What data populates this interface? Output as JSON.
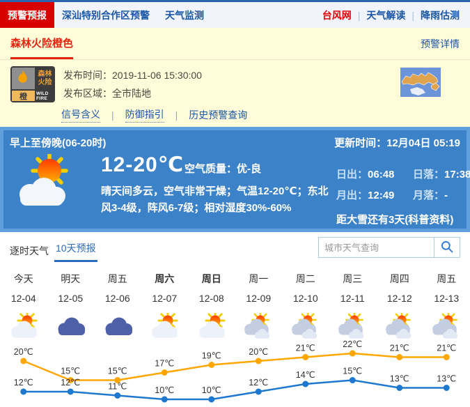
{
  "nav": {
    "separator": "|",
    "tabs": [
      {
        "label": "预警预报",
        "active": true
      },
      {
        "label": "深汕特别合作区预警",
        "active": false
      },
      {
        "label": "天气监测",
        "active": false
      }
    ],
    "links": [
      {
        "label": "台风网",
        "color": "#E60000"
      },
      {
        "label": "天气解读",
        "color": "#1A56A8"
      },
      {
        "label": "降雨估测",
        "color": "#1A56A8"
      }
    ]
  },
  "warning": {
    "tab": "森林火险橙色",
    "detail_link": "预警详情",
    "icon": {
      "name_line1": "森林",
      "name_line2": "火险",
      "level": "橙",
      "en": "WILD FIRE"
    },
    "publish_time_label": "发布时间：",
    "publish_time": "2019-11-06 15:30:00",
    "publish_area_label": "发布区域：",
    "publish_area": "全市陆地",
    "separator": "|",
    "links": [
      "信号含义",
      "防御指引",
      "历史预警查询"
    ]
  },
  "current": {
    "period": "早上至傍晚(06-20时)",
    "update_label": "更新时间：",
    "update_time": "12月04日 05:19",
    "temp_range": "12-20℃",
    "air_quality_label": "空气质量：",
    "air_quality": "优-良",
    "description": "晴天间多云，空气非常干燥；气温12-20℃；东北风3-4级，阵风6-7级；相对湿度30%-60%",
    "sunrise_label": "日出：",
    "sunrise": "06:48",
    "sunset_label": "日落：",
    "sunset": "17:38",
    "moonrise_label": "月出：",
    "moonrise": "12:49",
    "moonset_label": "月落：",
    "moonset": "-",
    "countdown": "距大雪还有3天(科普资料)"
  },
  "forecast_tabs": {
    "hourly": "逐时天气",
    "ten_day": "10天预报"
  },
  "search": {
    "placeholder": "城市天气查询"
  },
  "chart_data": {
    "type": "line",
    "title": "10天预报",
    "categories": [
      "今天",
      "明天",
      "周五",
      "周六",
      "周日",
      "周一",
      "周二",
      "周三",
      "周四",
      "周五"
    ],
    "dates": [
      "12-04",
      "12-05",
      "12-06",
      "12-07",
      "12-08",
      "12-09",
      "12-10",
      "12-11",
      "12-12",
      "12-13"
    ],
    "bold_days": [
      3,
      4
    ],
    "icons": [
      "sun-cloud",
      "cloud",
      "cloud",
      "sun-cloud",
      "sun-cloud",
      "sun-clouds",
      "sun-clouds",
      "sun-clouds",
      "sun-clouds",
      "sun-clouds"
    ],
    "unit": "℃",
    "series": [
      {
        "name": "high",
        "color": "#FFA600",
        "values": [
          20,
          15,
          15,
          17,
          19,
          20,
          21,
          22,
          21,
          21
        ]
      },
      {
        "name": "low",
        "color": "#1E78D0",
        "values": [
          12,
          12,
          11,
          10,
          10,
          12,
          14,
          15,
          13,
          13
        ]
      }
    ],
    "legend": "none",
    "grid": false
  }
}
